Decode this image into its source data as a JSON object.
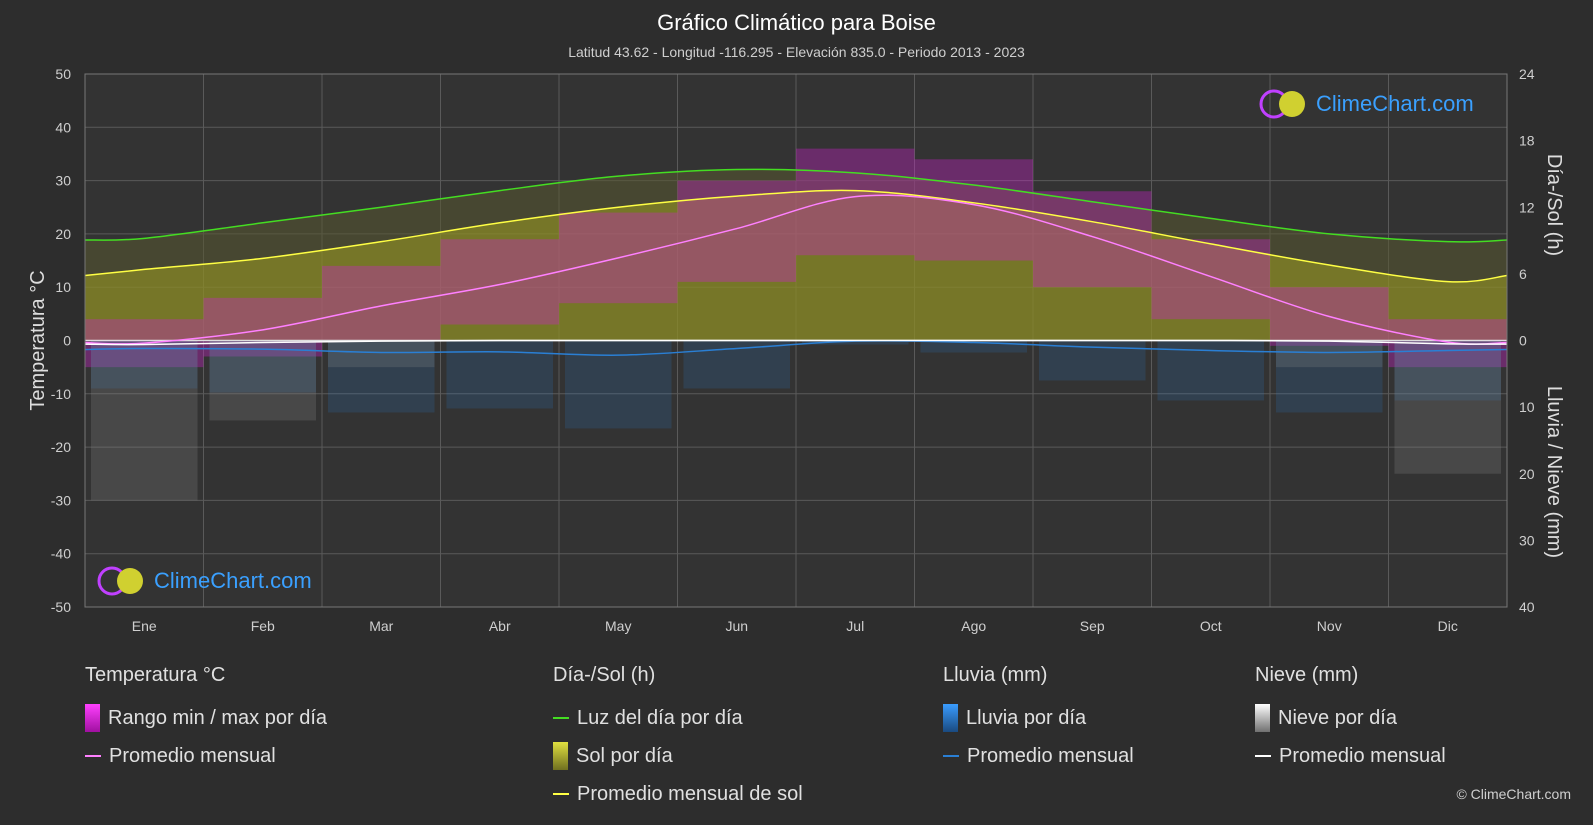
{
  "header": {
    "title": "Gráfico Climático para Boise",
    "subtitle": "Latitud 43.62 - Longitud -116.295 - Elevación 835.0 - Periodo 2013 - 2023"
  },
  "axes": {
    "left_label": "Temperatura °C",
    "right_top_label": "Día-/Sol (h)",
    "right_bottom_label": "Lluvia / Nieve (mm)"
  },
  "logo": {
    "text": "ClimeChart.com"
  },
  "copyright": "© ClimeChart.com",
  "legend": {
    "temperature": {
      "title": "Temperatura °C",
      "range": "Rango min / max por día",
      "avg": "Promedio mensual"
    },
    "sun": {
      "title": "Día-/Sol (h)",
      "daylight": "Luz del día por día",
      "sun_per_day": "Sol por día",
      "sun_avg": "Promedio mensual de sol"
    },
    "rain": {
      "title": "Lluvia (mm)",
      "per_day": "Lluvia por día",
      "avg": "Promedio mensual"
    },
    "snow": {
      "title": "Nieve (mm)",
      "per_day": "Nieve por día",
      "avg": "Promedio mensual"
    }
  },
  "colors": {
    "background": "#2d2d2d",
    "grid": "#5a5a5a",
    "temp_range": "#d020d0",
    "temp_avg": "#ff80ff",
    "daylight": "#44dd22",
    "sun": "#b0b020",
    "sun_avg": "#ffff44",
    "rain": "#2a7fd4",
    "snow": "#ffffff"
  },
  "chart_data": {
    "type": "line",
    "categories": [
      "Ene",
      "Feb",
      "Mar",
      "Abr",
      "May",
      "Jun",
      "Jul",
      "Ago",
      "Sep",
      "Oct",
      "Nov",
      "Dic"
    ],
    "left_axis": {
      "label": "Temperatura °C",
      "ylim": [
        -50,
        50
      ],
      "ticks": [
        50,
        40,
        30,
        20,
        10,
        0,
        -10,
        -20,
        -30,
        -40,
        -50
      ]
    },
    "right_axis_top": {
      "label": "Día-/Sol (h)",
      "ylim": [
        0,
        24
      ],
      "ticks": [
        24,
        18,
        12,
        6,
        0
      ]
    },
    "right_axis_bottom": {
      "label": "Lluvia / Nieve (mm)",
      "ylim": [
        0,
        40
      ],
      "ticks": [
        0,
        10,
        20,
        30,
        40
      ]
    },
    "grid": true,
    "series": [
      {
        "name": "Luz del día por día",
        "axis": "hours",
        "values": [
          9.2,
          10.6,
          12.0,
          13.5,
          14.8,
          15.4,
          15.1,
          14.0,
          12.5,
          11.0,
          9.6,
          8.9
        ]
      },
      {
        "name": "Promedio mensual de sol",
        "axis": "hours",
        "values": [
          6.4,
          7.4,
          8.9,
          10.6,
          12.0,
          13.0,
          13.5,
          12.4,
          10.7,
          8.7,
          6.8,
          5.3
        ]
      },
      {
        "name": "Promedio mensual (Temperatura)",
        "axis": "temperature",
        "values": [
          -0.5,
          2.0,
          6.5,
          10.5,
          15.5,
          21.0,
          27.0,
          25.5,
          19.5,
          12.0,
          4.5,
          -0.3
        ]
      },
      {
        "name": "Promedio mensual (Lluvia)",
        "axis": "precip",
        "values": [
          1.2,
          1.3,
          1.8,
          1.7,
          2.2,
          1.2,
          0.1,
          0.3,
          1.0,
          1.5,
          1.8,
          1.5
        ]
      },
      {
        "name": "Promedio mensual (Nieve)",
        "axis": "precip",
        "values": [
          0.6,
          0.3,
          0.1,
          0.0,
          0.0,
          0.0,
          0.0,
          0.0,
          0.0,
          0.0,
          0.1,
          0.5
        ]
      },
      {
        "name": "Rango min / max por día (max)",
        "axis": "temperature",
        "values": [
          4,
          8,
          14,
          19,
          24,
          30,
          36,
          34,
          28,
          19,
          10,
          4
        ]
      },
      {
        "name": "Rango min / max por día (min)",
        "axis": "temperature",
        "values": [
          -5,
          -3,
          0,
          3,
          7,
          11,
          16,
          15,
          10,
          4,
          -1,
          -5
        ]
      }
    ]
  }
}
